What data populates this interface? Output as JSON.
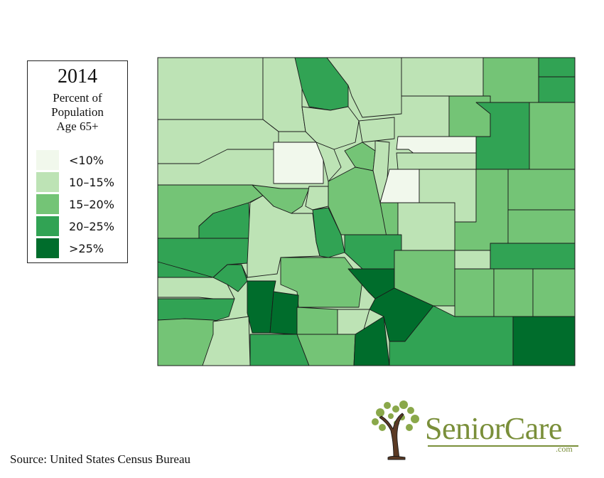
{
  "legend": {
    "year": "2014",
    "subtitle_lines": [
      "Percent of",
      "Population",
      "Age 65+"
    ],
    "bins": [
      {
        "label": "<10%",
        "color": "#f1f8ec",
        "class": "c1"
      },
      {
        "label": "10–15%",
        "color": "#bde3b5",
        "class": "c2"
      },
      {
        "label": "15–20%",
        "color": "#74c476",
        "class": "c3"
      },
      {
        "label": "20–25%",
        "color": "#31a354",
        "class": "c4"
      },
      {
        "label": ">25%",
        "color": "#006d2c",
        "class": "c5"
      }
    ]
  },
  "map": {
    "region": "Colorado",
    "unit": "counties",
    "border_color": "#1a1a1a"
  },
  "source": "Source: United States Census Bureau",
  "brand": {
    "name": "SeniorCare",
    "suffix": ".com",
    "logo_icon": "tree-heart-icon",
    "color": "#7a8f3a"
  }
}
